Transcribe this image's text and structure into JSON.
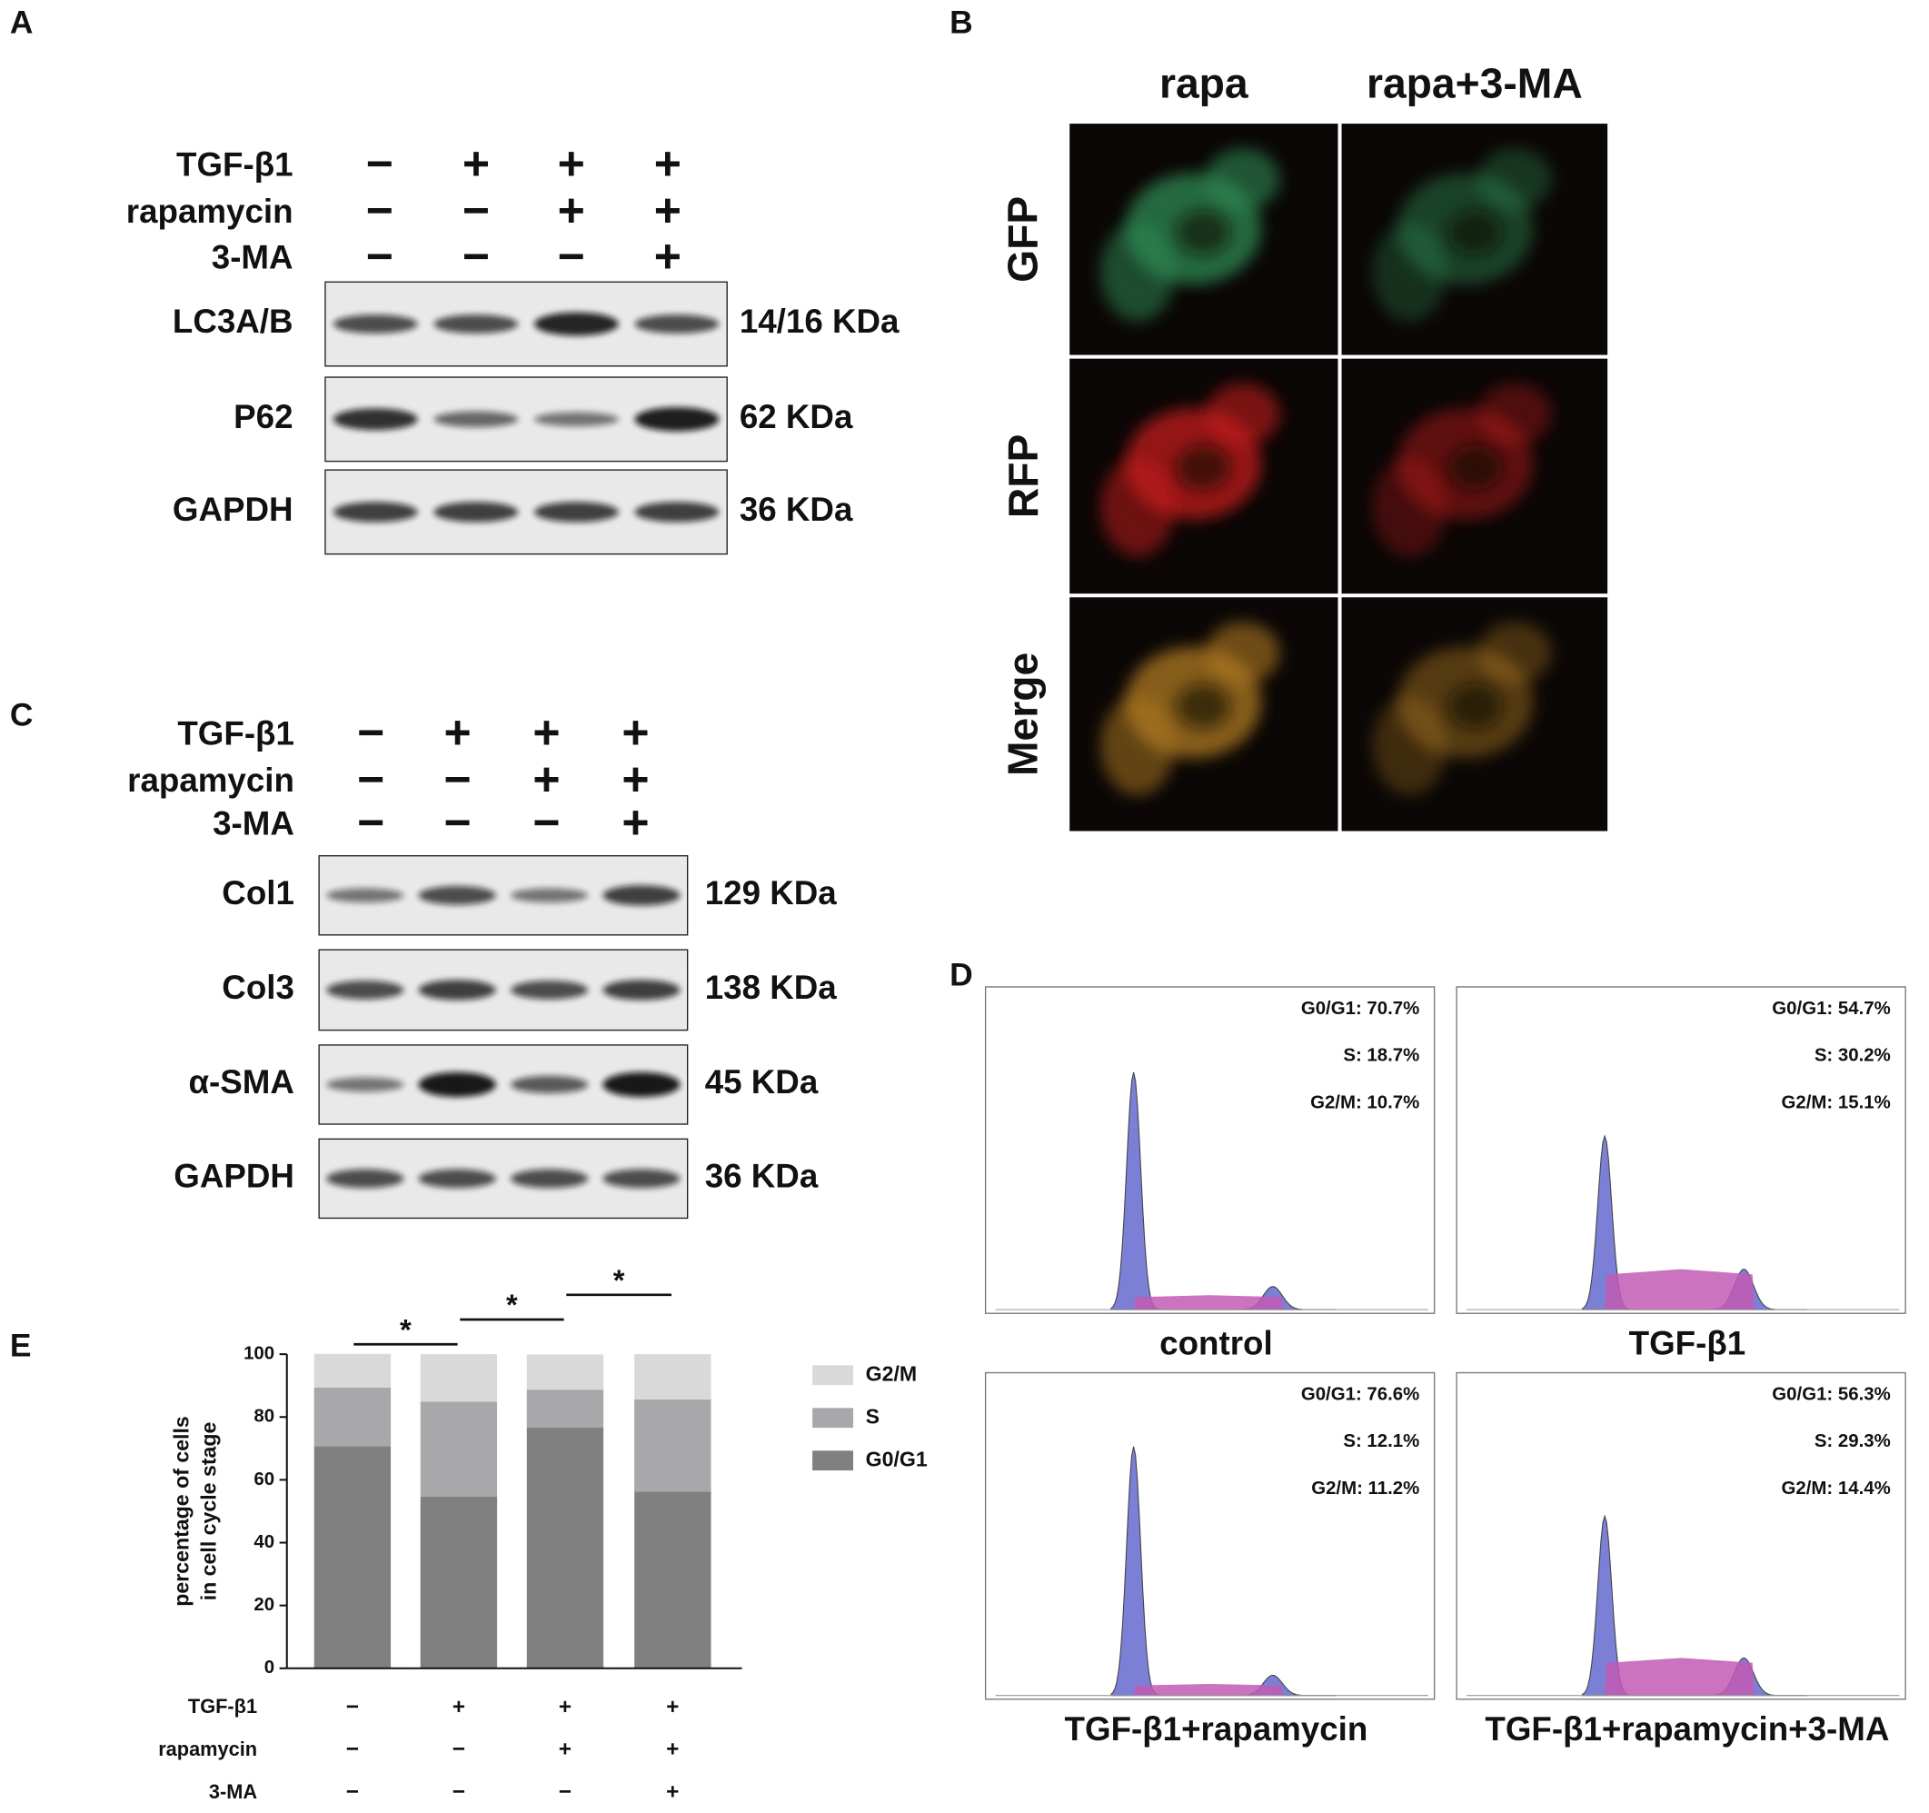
{
  "panel_a": {
    "label": "A",
    "treatments": [
      {
        "name": "TGF-β1",
        "signs": [
          "−",
          "+",
          "+",
          "+"
        ]
      },
      {
        "name": "rapamycin",
        "signs": [
          "−",
          "−",
          "+",
          "+"
        ]
      },
      {
        "name": "3-MA",
        "signs": [
          "−",
          "−",
          "−",
          "+"
        ]
      }
    ],
    "blots": [
      {
        "name": "LC3A/B",
        "size": "14/16 KDa"
      },
      {
        "name": "P62",
        "size": "62 KDa"
      },
      {
        "name": "GAPDH",
        "size": "36 KDa"
      }
    ]
  },
  "panel_b": {
    "label": "B",
    "columns": [
      "rapa",
      "rapa+3-MA"
    ],
    "rows": [
      "GFP",
      "RFP",
      "Merge"
    ]
  },
  "panel_c": {
    "label": "C",
    "treatments": [
      {
        "name": "TGF-β1",
        "signs": [
          "−",
          "+",
          "+",
          "+"
        ]
      },
      {
        "name": "rapamycin",
        "signs": [
          "−",
          "−",
          "+",
          "+"
        ]
      },
      {
        "name": "3-MA",
        "signs": [
          "−",
          "−",
          "−",
          "+"
        ]
      }
    ],
    "blots": [
      {
        "name": "Col1",
        "size": "129 KDa"
      },
      {
        "name": "Col3",
        "size": "138 KDa"
      },
      {
        "name": "α-SMA",
        "size": "45 KDa"
      },
      {
        "name": "GAPDH",
        "size": "36 KDa"
      }
    ]
  },
  "panel_d": {
    "label": "D",
    "histograms": [
      {
        "caption": "control",
        "stats": [
          "G0/G1: 70.7%",
          "S: 18.7%",
          "G2/M: 10.7%"
        ]
      },
      {
        "caption": "TGF-β1",
        "stats": [
          "G0/G1: 54.7%",
          "S: 30.2%",
          "G2/M: 15.1%"
        ]
      },
      {
        "caption": "TGF-β1+rapamycin",
        "stats": [
          "G0/G1: 76.6%",
          "S: 12.1%",
          "G2/M: 11.2%"
        ]
      },
      {
        "caption": "TGF-β1+rapamycin+3-MA",
        "stats": [
          "G0/G1: 56.3%",
          "S: 29.3%",
          "G2/M: 14.4%"
        ]
      }
    ]
  },
  "chart_data": {
    "type": "bar",
    "stacked": true,
    "label": "E",
    "ylabel": [
      "percentage of cells",
      "in cell cycle stage"
    ],
    "ylim": [
      0,
      100
    ],
    "yticks": [
      0,
      20,
      40,
      60,
      80,
      100
    ],
    "series": [
      {
        "name": "G0/G1",
        "color": "#808080",
        "values": [
          70.7,
          54.7,
          76.6,
          56.3
        ]
      },
      {
        "name": "S",
        "color": "#a8a8ab",
        "values": [
          18.7,
          30.2,
          12.1,
          29.3
        ]
      },
      {
        "name": "G2/M",
        "color": "#d9d9d9",
        "values": [
          10.7,
          15.1,
          11.2,
          14.4
        ]
      }
    ],
    "treatments": [
      {
        "name": "TGF-β1",
        "signs": [
          "−",
          "+",
          "+",
          "+"
        ]
      },
      {
        "name": "rapamycin",
        "signs": [
          "−",
          "−",
          "+",
          "+"
        ]
      },
      {
        "name": "3-MA",
        "signs": [
          "−",
          "−",
          "−",
          "+"
        ]
      }
    ],
    "annotations": [
      "*",
      "*",
      "*"
    ]
  }
}
